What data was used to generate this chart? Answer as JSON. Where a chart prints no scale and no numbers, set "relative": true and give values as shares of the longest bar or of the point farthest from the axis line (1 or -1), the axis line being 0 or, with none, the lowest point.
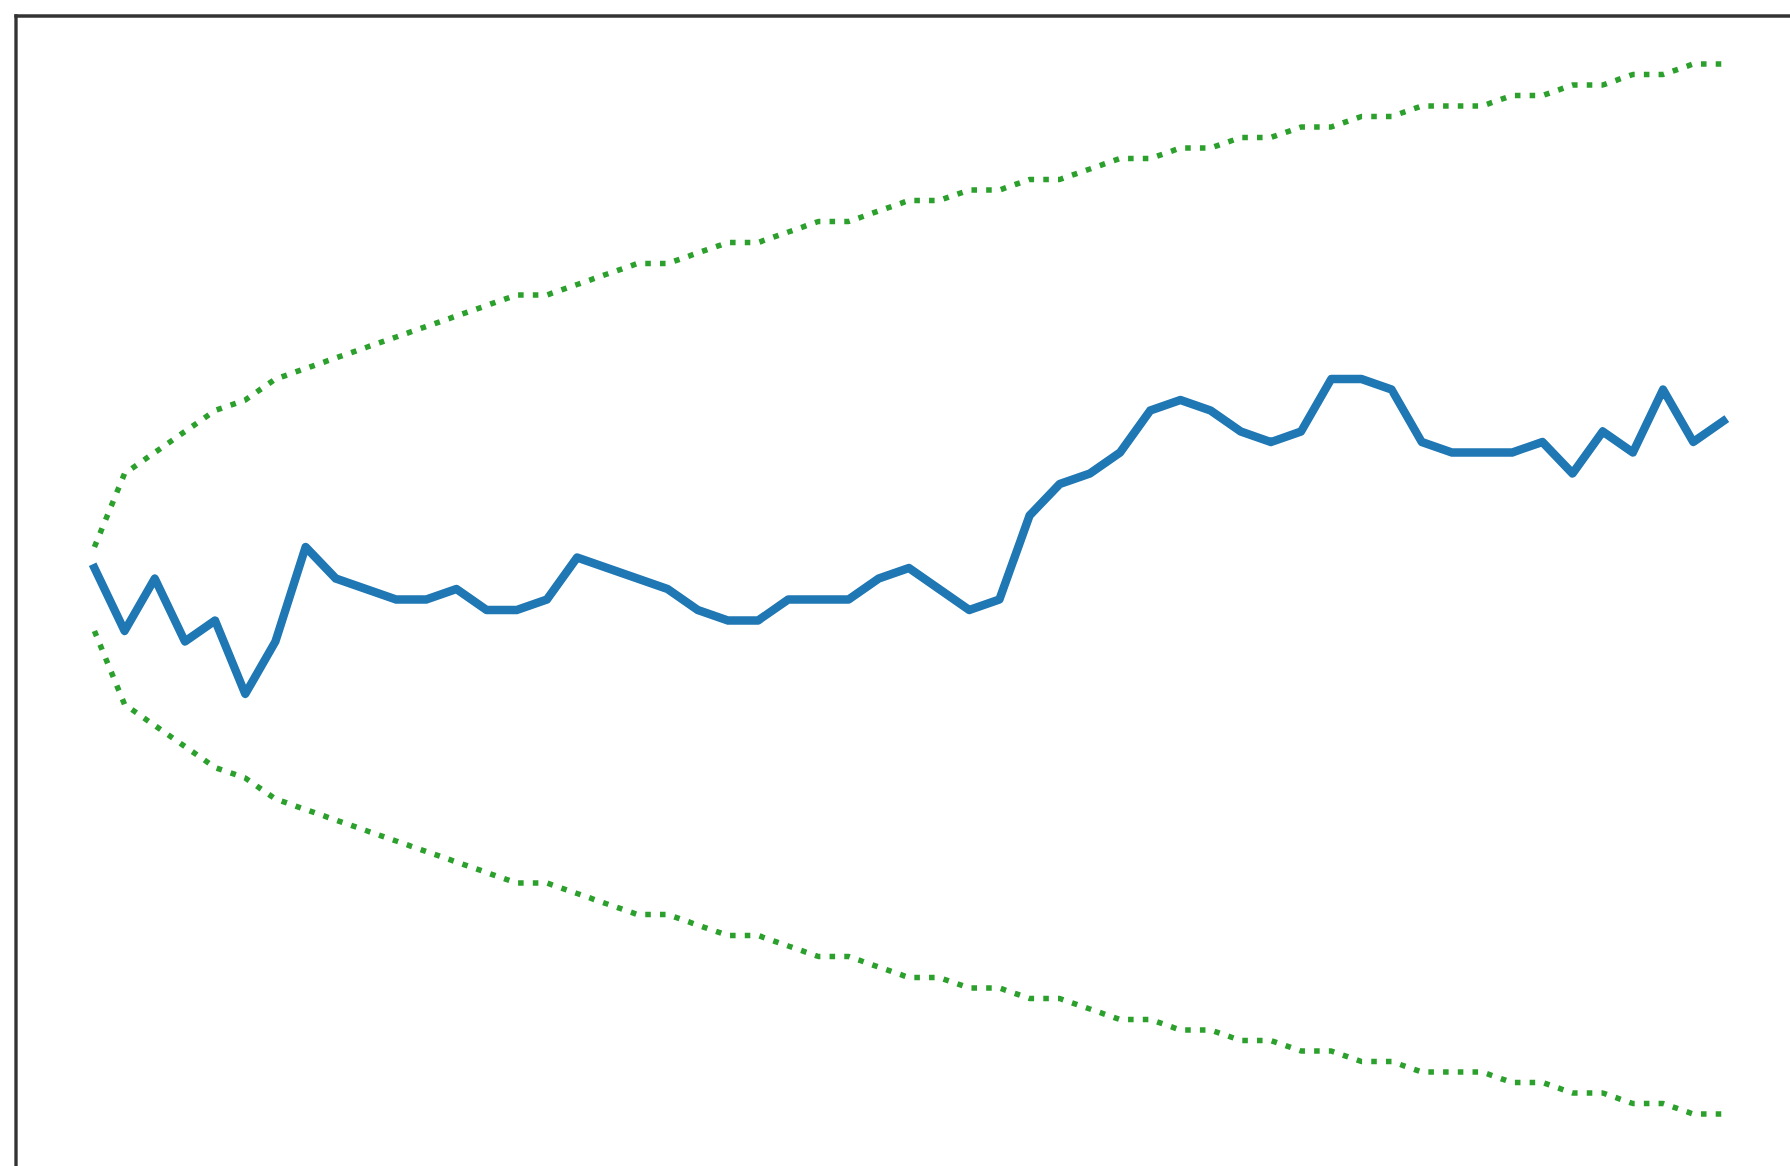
{
  "chart_data": {
    "type": "line",
    "relative": true,
    "legend": false,
    "marker": "none",
    "categories": [
      null,
      null,
      null,
      null,
      null,
      null,
      null,
      null,
      null,
      null,
      null,
      null,
      null,
      null,
      null,
      null,
      null,
      null,
      null,
      null,
      null,
      null,
      null,
      null,
      null,
      null,
      null,
      null,
      null,
      null,
      null,
      null,
      null,
      null,
      null,
      null,
      null,
      null,
      null,
      null,
      null,
      null,
      null,
      null,
      null,
      null,
      null,
      null,
      null,
      null,
      null,
      null,
      null,
      null,
      null
    ],
    "series": [
      {
        "color": "#1f77b4",
        "line_style": "solid",
        "values": [
          0.52,
          0.46,
          0.51,
          0.45,
          0.47,
          0.4,
          0.45,
          0.54,
          0.51,
          0.5,
          0.49,
          0.49,
          0.5,
          0.48,
          0.48,
          0.49,
          0.53,
          0.52,
          0.51,
          0.5,
          0.48,
          0.47,
          0.47,
          0.49,
          0.49,
          0.49,
          0.51,
          0.52,
          0.5,
          0.48,
          0.49,
          0.57,
          0.6,
          0.61,
          0.63,
          0.67,
          0.68,
          0.67,
          0.65,
          0.64,
          0.65,
          0.7,
          0.7,
          0.69,
          0.64,
          0.63,
          0.63,
          0.63,
          0.64,
          0.61,
          0.65,
          0.63,
          0.69,
          0.64,
          0.66
        ]
      },
      {
        "color": "#2ca02c",
        "line_style": "dotted",
        "values": [
          0.54,
          0.61,
          0.63,
          0.65,
          0.67,
          0.68,
          0.7,
          0.71,
          0.72,
          0.73,
          0.74,
          0.75,
          0.76,
          0.77,
          0.78,
          0.78,
          0.79,
          0.8,
          0.81,
          0.81,
          0.82,
          0.83,
          0.83,
          0.84,
          0.85,
          0.85,
          0.86,
          0.87,
          0.87,
          0.88,
          0.88,
          0.89,
          0.89,
          0.9,
          0.91,
          0.91,
          0.92,
          0.92,
          0.93,
          0.93,
          0.94,
          0.94,
          0.95,
          0.95,
          0.96,
          0.96,
          0.96,
          0.97,
          0.97,
          0.98,
          0.98,
          0.99,
          0.99,
          1.0,
          1.0
        ]
      },
      {
        "color": "#2ca02c",
        "line_style": "dotted",
        "values": [
          0.46,
          0.39,
          0.37,
          0.35,
          0.33,
          0.32,
          0.3,
          0.29,
          0.28,
          0.27,
          0.26,
          0.25,
          0.24,
          0.23,
          0.22,
          0.22,
          0.21,
          0.2,
          0.19,
          0.19,
          0.18,
          0.17,
          0.17,
          0.16,
          0.15,
          0.15,
          0.14,
          0.13,
          0.13,
          0.12,
          0.12,
          0.11,
          0.11,
          0.1,
          0.09,
          0.09,
          0.08,
          0.08,
          0.07,
          0.07,
          0.06,
          0.06,
          0.05,
          0.05,
          0.04,
          0.04,
          0.04,
          0.03,
          0.03,
          0.02,
          0.02,
          0.01,
          0.01,
          0.0,
          0.0
        ]
      }
    ]
  }
}
